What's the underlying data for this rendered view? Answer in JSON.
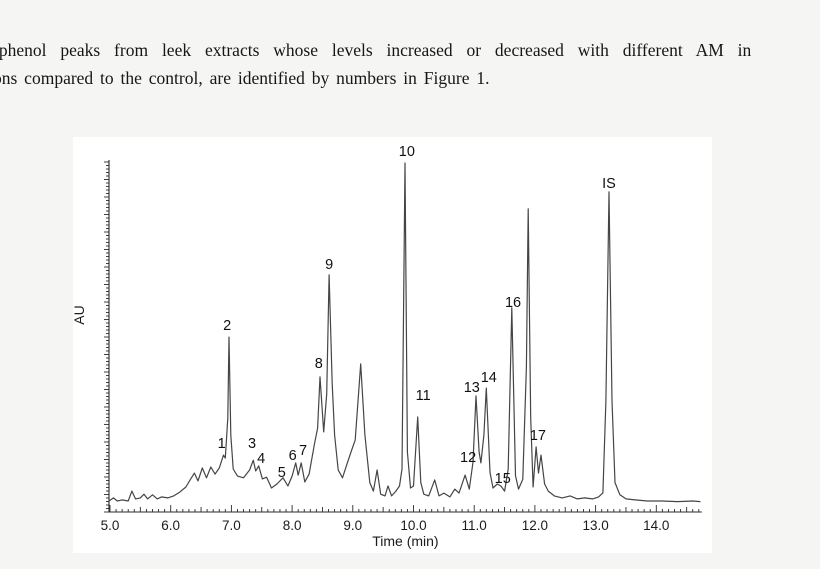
{
  "page": {
    "background": "#f5f5f4",
    "text_line1": "’phenol peaks from leek extracts whose levels increased or decreased with different AM in",
    "text_line2": "ons compared to the control, are identified by numbers in Figure 1."
  },
  "figure": {
    "background": "#ffffff",
    "xlabel": "Time (min)",
    "ylabel": "AU",
    "x_tick_labels": [
      "5.0",
      "6.0",
      "7.0",
      "8.0",
      "9.0",
      "10.0",
      "11.0",
      "12.0",
      "13.0",
      "14.0"
    ]
  },
  "chart_data": {
    "type": "line",
    "title": "",
    "xlabel": "Time (min)",
    "ylabel": "AU",
    "xlim": [
      5.0,
      14.75
    ],
    "ylim": [
      0,
      1.1
    ],
    "y_units_note": "AU axis has no numeric ticks; heights are normalized to tallest peak (peak 10) = 1.0",
    "x_ticks": [
      5,
      6,
      7,
      8,
      9,
      10,
      11,
      12,
      13,
      14
    ],
    "legend": [],
    "grid": false,
    "peaks": [
      {
        "id": "1",
        "time": 6.87,
        "height": 0.14
      },
      {
        "id": "2",
        "time": 6.96,
        "height": 0.49
      },
      {
        "id": "3",
        "time": 7.36,
        "height": 0.13
      },
      {
        "id": "4",
        "time": 7.45,
        "height": 0.11
      },
      {
        "id": "5",
        "time": 7.85,
        "height": 0.07
      },
      {
        "id": "6",
        "time": 8.06,
        "height": 0.12
      },
      {
        "id": "7",
        "time": 8.15,
        "height": 0.12
      },
      {
        "id": "8",
        "time": 8.46,
        "height": 0.37
      },
      {
        "id": "9",
        "time": 8.61,
        "height": 0.67
      },
      {
        "id": "10",
        "time": 9.86,
        "height": 1.0
      },
      {
        "id": "11",
        "time": 10.07,
        "height": 0.25
      },
      {
        "id": "12",
        "time": 10.85,
        "height": 0.08
      },
      {
        "id": "13",
        "time": 11.03,
        "height": 0.32
      },
      {
        "id": "14",
        "time": 11.2,
        "height": 0.34
      },
      {
        "id": "15",
        "time": 11.41,
        "height": 0.05
      },
      {
        "id": "16",
        "time": 11.62,
        "height": 0.57
      },
      {
        "id": "17",
        "time": 12.02,
        "height": 0.17
      },
      {
        "id": "IS",
        "time": 13.22,
        "height": 0.92
      }
    ],
    "labels": [
      {
        "text": "1",
        "t": 6.84,
        "h": 0.176
      },
      {
        "text": "2",
        "t": 6.93,
        "h": 0.524
      },
      {
        "text": "3",
        "t": 7.34,
        "h": 0.176
      },
      {
        "text": "4",
        "t": 7.49,
        "h": 0.132
      },
      {
        "text": "5",
        "t": 7.83,
        "h": 0.091
      },
      {
        "text": "6",
        "t": 8.01,
        "h": 0.141
      },
      {
        "text": "7",
        "t": 8.18,
        "h": 0.156
      },
      {
        "text": "8",
        "t": 8.44,
        "h": 0.412
      },
      {
        "text": "9",
        "t": 8.61,
        "h": 0.703
      },
      {
        "text": "10",
        "t": 9.89,
        "h": 1.035
      },
      {
        "text": "11",
        "t": 10.16,
        "h": 0.318
      },
      {
        "text": "12",
        "t": 10.9,
        "h": 0.135
      },
      {
        "text": "13",
        "t": 10.96,
        "h": 0.341
      },
      {
        "text": "14",
        "t": 11.24,
        "h": 0.371
      },
      {
        "text": "15",
        "t": 11.47,
        "h": 0.074
      },
      {
        "text": "16",
        "t": 11.64,
        "h": 0.591
      },
      {
        "text": "17",
        "t": 12.05,
        "h": 0.2
      },
      {
        "text": "IS",
        "t": 13.22,
        "h": 0.941
      }
    ],
    "trace": [
      [
        5.0,
        0.008
      ],
      [
        5.06,
        0.015
      ],
      [
        5.12,
        0.006
      ],
      [
        5.2,
        0.009
      ],
      [
        5.3,
        0.006
      ],
      [
        5.36,
        0.035
      ],
      [
        5.42,
        0.012
      ],
      [
        5.5,
        0.015
      ],
      [
        5.56,
        0.026
      ],
      [
        5.62,
        0.012
      ],
      [
        5.7,
        0.024
      ],
      [
        5.78,
        0.012
      ],
      [
        5.85,
        0.018
      ],
      [
        5.95,
        0.015
      ],
      [
        6.05,
        0.021
      ],
      [
        6.15,
        0.032
      ],
      [
        6.25,
        0.047
      ],
      [
        6.33,
        0.071
      ],
      [
        6.39,
        0.088
      ],
      [
        6.45,
        0.065
      ],
      [
        6.52,
        0.103
      ],
      [
        6.59,
        0.074
      ],
      [
        6.66,
        0.106
      ],
      [
        6.73,
        0.085
      ],
      [
        6.8,
        0.103
      ],
      [
        6.87,
        0.141
      ],
      [
        6.9,
        0.132
      ],
      [
        6.94,
        0.25
      ],
      [
        6.96,
        0.488
      ],
      [
        6.99,
        0.2
      ],
      [
        7.03,
        0.1
      ],
      [
        7.1,
        0.079
      ],
      [
        7.2,
        0.074
      ],
      [
        7.3,
        0.097
      ],
      [
        7.36,
        0.126
      ],
      [
        7.4,
        0.094
      ],
      [
        7.45,
        0.109
      ],
      [
        7.51,
        0.071
      ],
      [
        7.58,
        0.076
      ],
      [
        7.66,
        0.044
      ],
      [
        7.75,
        0.056
      ],
      [
        7.85,
        0.074
      ],
      [
        7.93,
        0.05
      ],
      [
        8.0,
        0.079
      ],
      [
        8.06,
        0.118
      ],
      [
        8.1,
        0.082
      ],
      [
        8.15,
        0.118
      ],
      [
        8.21,
        0.062
      ],
      [
        8.28,
        0.085
      ],
      [
        8.37,
        0.176
      ],
      [
        8.42,
        0.22
      ],
      [
        8.46,
        0.371
      ],
      [
        8.52,
        0.209
      ],
      [
        8.57,
        0.32
      ],
      [
        8.61,
        0.671
      ],
      [
        8.66,
        0.35
      ],
      [
        8.7,
        0.2
      ],
      [
        8.76,
        0.097
      ],
      [
        8.83,
        0.074
      ],
      [
        8.9,
        0.112
      ],
      [
        8.97,
        0.15
      ],
      [
        9.04,
        0.185
      ],
      [
        9.13,
        0.409
      ],
      [
        9.2,
        0.2
      ],
      [
        9.28,
        0.06
      ],
      [
        9.34,
        0.035
      ],
      [
        9.4,
        0.097
      ],
      [
        9.46,
        0.026
      ],
      [
        9.53,
        0.021
      ],
      [
        9.58,
        0.05
      ],
      [
        9.64,
        0.021
      ],
      [
        9.71,
        0.035
      ],
      [
        9.77,
        0.05
      ],
      [
        9.81,
        0.1
      ],
      [
        9.86,
        1.0
      ],
      [
        9.9,
        0.15
      ],
      [
        9.95,
        0.044
      ],
      [
        10.0,
        0.05
      ],
      [
        10.07,
        0.253
      ],
      [
        10.12,
        0.06
      ],
      [
        10.17,
        0.026
      ],
      [
        10.25,
        0.021
      ],
      [
        10.35,
        0.068
      ],
      [
        10.42,
        0.021
      ],
      [
        10.5,
        0.029
      ],
      [
        10.6,
        0.018
      ],
      [
        10.68,
        0.041
      ],
      [
        10.75,
        0.029
      ],
      [
        10.85,
        0.082
      ],
      [
        10.92,
        0.041
      ],
      [
        10.98,
        0.12
      ],
      [
        11.03,
        0.315
      ],
      [
        11.08,
        0.15
      ],
      [
        11.11,
        0.118
      ],
      [
        11.16,
        0.2
      ],
      [
        11.2,
        0.338
      ],
      [
        11.26,
        0.09
      ],
      [
        11.31,
        0.044
      ],
      [
        11.38,
        0.056
      ],
      [
        11.44,
        0.05
      ],
      [
        11.5,
        0.035
      ],
      [
        11.56,
        0.1
      ],
      [
        11.62,
        0.574
      ],
      [
        11.68,
        0.08
      ],
      [
        11.73,
        0.041
      ],
      [
        11.8,
        0.07
      ],
      [
        11.86,
        0.4
      ],
      [
        11.89,
        0.865
      ],
      [
        11.93,
        0.25
      ],
      [
        11.97,
        0.047
      ],
      [
        12.02,
        0.165
      ],
      [
        12.06,
        0.088
      ],
      [
        12.1,
        0.141
      ],
      [
        12.16,
        0.056
      ],
      [
        12.22,
        0.035
      ],
      [
        12.32,
        0.021
      ],
      [
        12.45,
        0.015
      ],
      [
        12.58,
        0.021
      ],
      [
        12.7,
        0.012
      ],
      [
        12.82,
        0.015
      ],
      [
        12.95,
        0.012
      ],
      [
        13.05,
        0.018
      ],
      [
        13.12,
        0.03
      ],
      [
        13.17,
        0.3
      ],
      [
        13.22,
        0.915
      ],
      [
        13.27,
        0.3
      ],
      [
        13.32,
        0.06
      ],
      [
        13.4,
        0.024
      ],
      [
        13.5,
        0.012
      ],
      [
        13.65,
        0.009
      ],
      [
        13.85,
        0.006
      ],
      [
        14.1,
        0.006
      ],
      [
        14.35,
        0.004
      ],
      [
        14.6,
        0.006
      ],
      [
        14.72,
        0.004
      ]
    ]
  }
}
